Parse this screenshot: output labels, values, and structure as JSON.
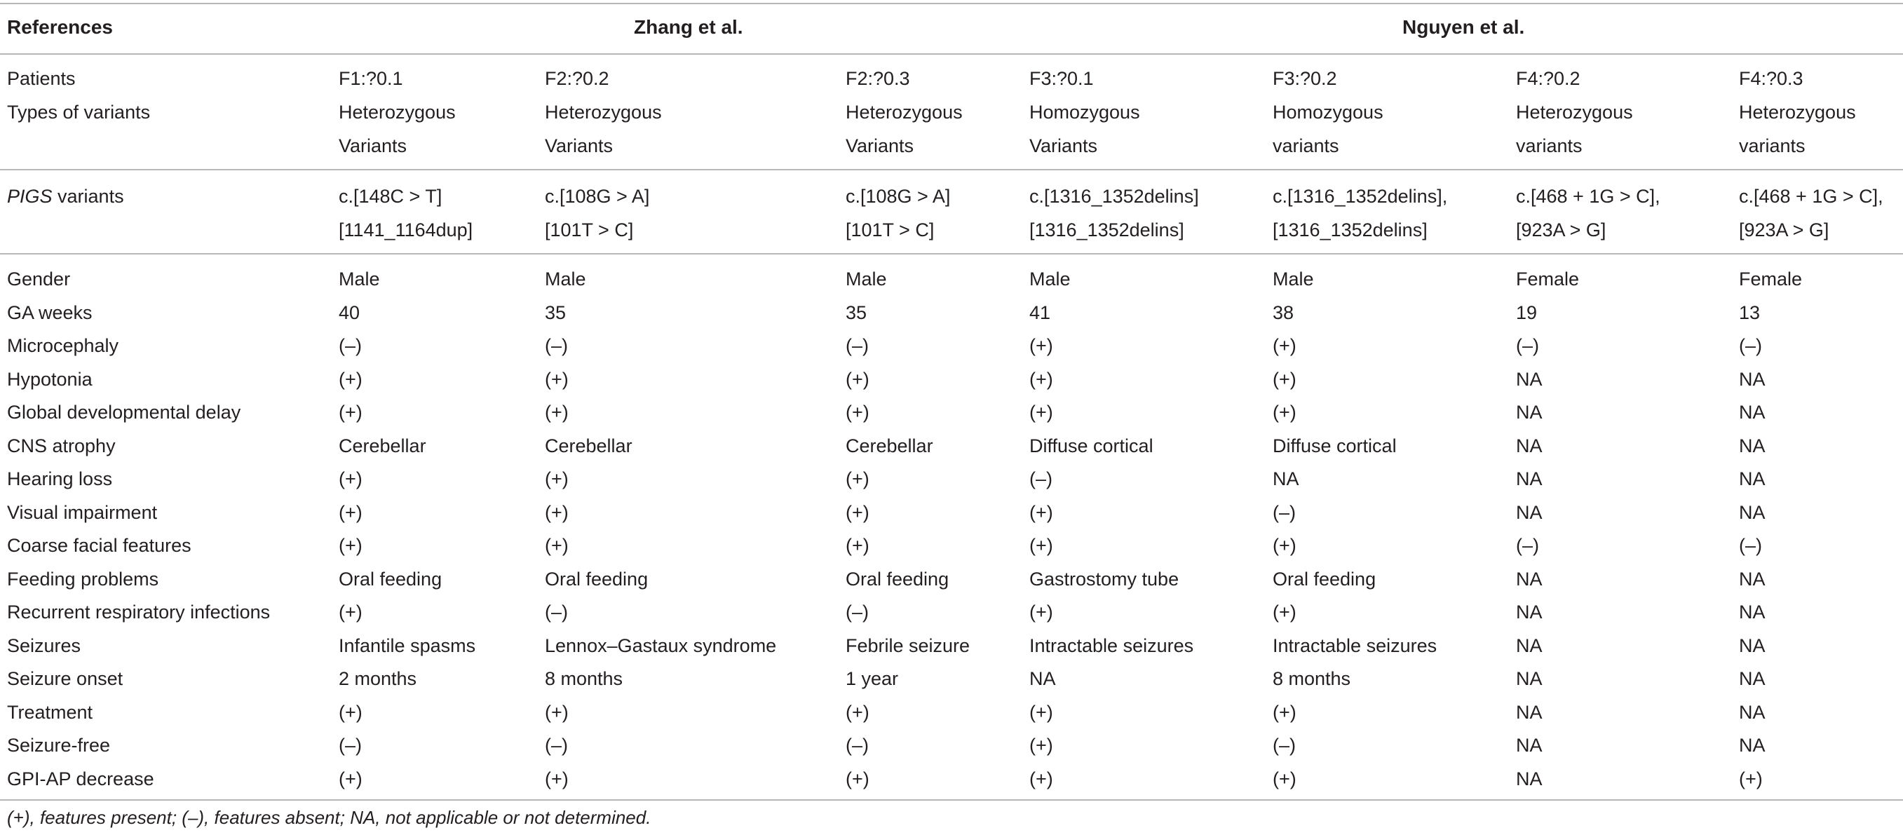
{
  "header": {
    "references": "References",
    "group1": "Zhang et al.",
    "group2": "Nguyen et al."
  },
  "patients_label": "Patients",
  "patients": [
    "F1:?0.1",
    "F2:?0.2",
    "F2:?0.3",
    "F3:?0.1",
    "F3:?0.2",
    "F4:?0.2",
    "F4:?0.3"
  ],
  "variant_types_label": "Types of variants",
  "variant_types": [
    [
      "Heterozygous",
      "Variants"
    ],
    [
      "Heterozygous",
      "Variants"
    ],
    [
      "Heterozygous",
      "Variants"
    ],
    [
      "Homozygous",
      "Variants"
    ],
    [
      "Homozygous",
      "variants"
    ],
    [
      "Heterozygous",
      "variants"
    ],
    [
      "Heterozygous",
      "variants"
    ]
  ],
  "pigs_label_italic": "PIGS",
  "pigs_label_rest": " variants",
  "pigs_variants": [
    [
      "c.[148C > T]",
      "[1141_1164dup]"
    ],
    [
      "c.[108G > A]",
      "[101T > C]"
    ],
    [
      "c.[108G > A]",
      "[101T > C]"
    ],
    [
      "c.[1316_1352delins]",
      "[1316_1352delins]"
    ],
    [
      "c.[1316_1352delins],",
      "[1316_1352delins]"
    ],
    [
      "c.[468 + 1G > C],",
      "[923A > G]"
    ],
    [
      "c.[468 + 1G > C],",
      "[923A > G]"
    ]
  ],
  "rows": [
    {
      "label": "Gender",
      "values": [
        "Male",
        "Male",
        "Male",
        "Male",
        "Male",
        "Female",
        "Female"
      ]
    },
    {
      "label": "GA weeks",
      "values": [
        "40",
        "35",
        "35",
        "41",
        "38",
        "19",
        "13"
      ]
    },
    {
      "label": "Microcephaly",
      "values": [
        "(–)",
        "(–)",
        "(–)",
        "(+)",
        "(+)",
        "(–)",
        "(–)"
      ]
    },
    {
      "label": "Hypotonia",
      "values": [
        "(+)",
        "(+)",
        "(+)",
        "(+)",
        "(+)",
        "NA",
        "NA"
      ]
    },
    {
      "label": "Global developmental delay",
      "values": [
        "(+)",
        "(+)",
        "(+)",
        "(+)",
        "(+)",
        "NA",
        "NA"
      ]
    },
    {
      "label": "CNS atrophy",
      "values": [
        "Cerebellar",
        "Cerebellar",
        "Cerebellar",
        "Diffuse cortical",
        "Diffuse cortical",
        "NA",
        "NA"
      ]
    },
    {
      "label": "Hearing loss",
      "values": [
        "(+)",
        "(+)",
        "(+)",
        "(–)",
        "NA",
        "NA",
        "NA"
      ]
    },
    {
      "label": "Visual impairment",
      "values": [
        "(+)",
        "(+)",
        "(+)",
        "(+)",
        "(–)",
        "NA",
        "NA"
      ]
    },
    {
      "label": "Coarse facial features",
      "values": [
        "(+)",
        "(+)",
        "(+)",
        "(+)",
        "(+)",
        "(–)",
        "(–)"
      ]
    },
    {
      "label": "Feeding problems",
      "values": [
        "Oral feeding",
        "Oral feeding",
        "Oral feeding",
        "Gastrostomy tube",
        "Oral feeding",
        "NA",
        "NA"
      ]
    },
    {
      "label": "Recurrent respiratory infections",
      "values": [
        "(+)",
        "(–)",
        "(–)",
        "(+)",
        "(+)",
        "NA",
        "NA"
      ]
    },
    {
      "label": "Seizures",
      "values": [
        "Infantile spasms",
        "Lennox–Gastaux syndrome",
        "Febrile seizure",
        "Intractable seizures",
        "Intractable seizures",
        "NA",
        "NA"
      ]
    },
    {
      "label": "Seizure onset",
      "values": [
        "2 months",
        "8 months",
        "1 year",
        "NA",
        "8 months",
        "NA",
        "NA"
      ]
    },
    {
      "label": "Treatment",
      "values": [
        "(+)",
        "(+)",
        "(+)",
        "(+)",
        "(+)",
        "NA",
        "NA"
      ]
    },
    {
      "label": "Seizure-free",
      "values": [
        "(–)",
        "(–)",
        "(–)",
        "(+)",
        "(–)",
        "NA",
        "NA"
      ]
    },
    {
      "label": "GPI-AP decrease",
      "values": [
        "(+)",
        "(+)",
        "(+)",
        "(+)",
        "(+)",
        "NA",
        "(+)"
      ]
    }
  ],
  "footnote": "(+), features present; (–), features absent; NA, not applicable or not determined."
}
